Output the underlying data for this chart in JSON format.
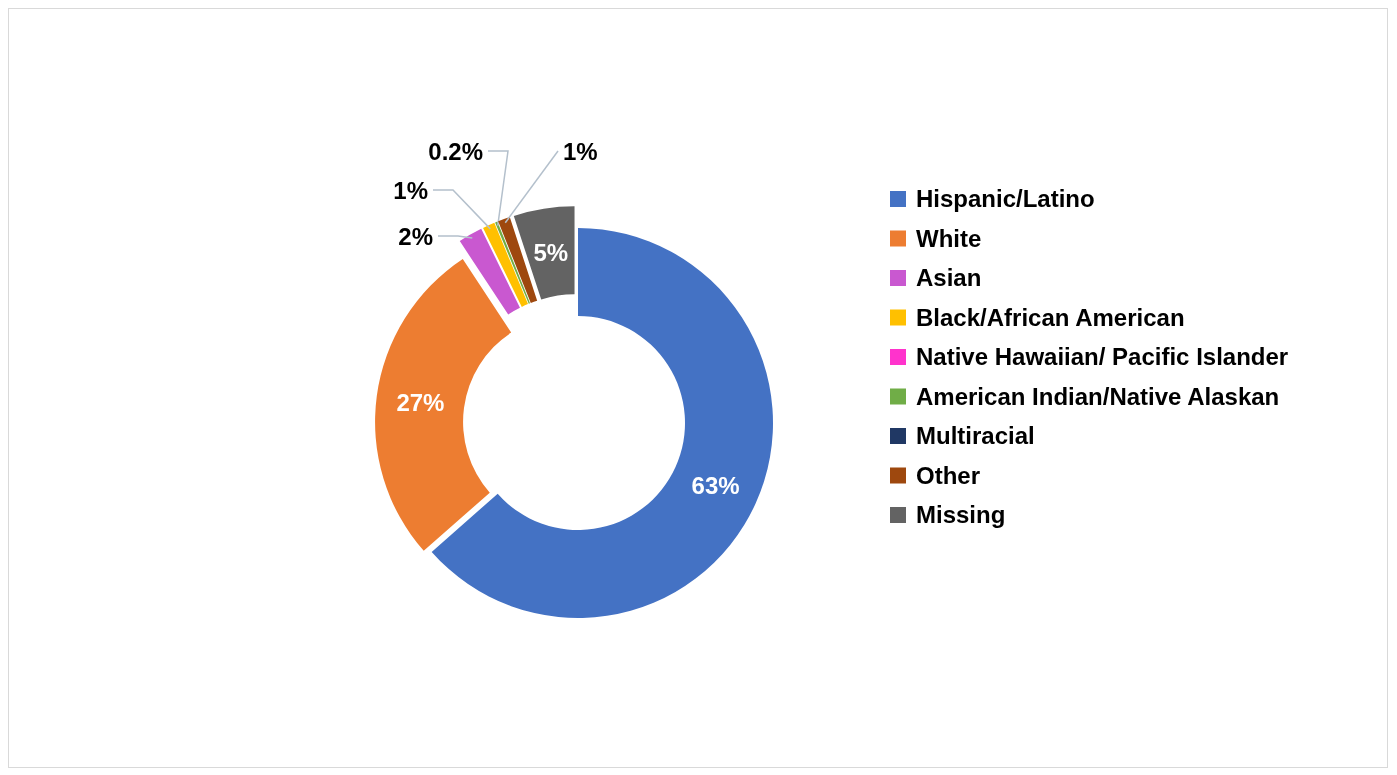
{
  "chart_data": {
    "type": "donut",
    "categories": [
      "Hispanic/Latino",
      "White",
      "Asian",
      "Black/African American",
      "Native Hawaiian/ Pacific Islander",
      "American Indian/Native Alaskan",
      "Multiracial",
      "Other",
      "Missing"
    ],
    "values": [
      63,
      27,
      2,
      1,
      0,
      0.2,
      0,
      1,
      5
    ],
    "value_labels": [
      "63%",
      "27%",
      "2%",
      "1%",
      null,
      "0.2%",
      null,
      "1%",
      "5%"
    ],
    "colors": [
      "#4472c4",
      "#ed7d31",
      "#c958d0",
      "#ffc000",
      "#ff33cc",
      "#70ad47",
      "#203864",
      "#9e480e",
      "#636363"
    ],
    "legend": "right"
  }
}
